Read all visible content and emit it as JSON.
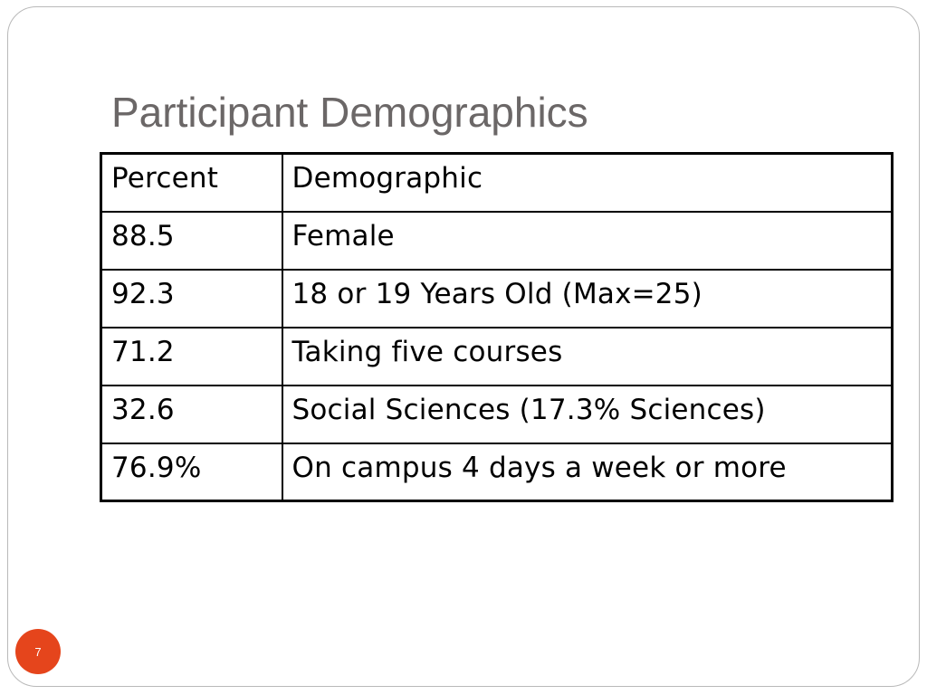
{
  "slide": {
    "title": "Participant Demographics",
    "page_number": "7"
  },
  "table": {
    "headers": [
      "Percent",
      "Demographic"
    ],
    "rows": [
      {
        "percent": "88.5",
        "demographic": "Female"
      },
      {
        "percent": "92.3",
        "demographic": "18 or 19 Years Old (Max=25)"
      },
      {
        "percent": "71.2",
        "demographic": "Taking five courses"
      },
      {
        "percent": "32.6",
        "demographic": "Social Sciences (17.3% Sciences)"
      },
      {
        "percent": "76.9%",
        "demographic": "On campus 4 days a week or more"
      }
    ]
  },
  "colors": {
    "title": "#6b6767",
    "badge": "#e5451c",
    "border": "#b9b9b9"
  }
}
